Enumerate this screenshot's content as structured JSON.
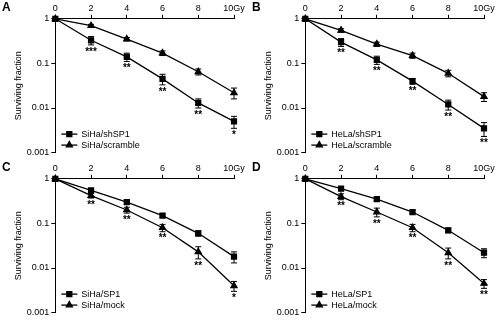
{
  "chart_data": [
    {
      "type": "line",
      "title": "A",
      "ylabel": "Surviving fraction",
      "x": [
        0,
        2,
        4,
        6,
        8,
        10
      ],
      "xlim": [
        0,
        10
      ],
      "xticks": [
        0,
        2,
        4,
        6,
        8,
        {
          "value": 10,
          "label": "10Gy"
        }
      ],
      "ylim": [
        0.001,
        1
      ],
      "yticks": [
        0.001,
        0.01,
        0.1,
        1
      ],
      "log": "y",
      "grid": false,
      "legend": "lower left",
      "series": [
        {
          "name": "SiHa/shSP1",
          "color": "#000000",
          "marker": "square",
          "values": [
            1,
            0.33,
            0.14,
            0.045,
            0.013,
            0.005
          ],
          "errors": [
            0,
            0.07,
            0.03,
            0.012,
            0.003,
            0.0015
          ]
        },
        {
          "name": "SiHa/scramble",
          "color": "#000000",
          "marker": "triangle",
          "values": [
            1,
            0.7,
            0.35,
            0.17,
            0.065,
            0.022
          ],
          "errors": [
            0,
            0.05,
            0.03,
            0.02,
            0.01,
            0.006
          ]
        }
      ],
      "annotations": [
        {
          "x": 2,
          "text": "***"
        },
        {
          "x": 4,
          "text": "**"
        },
        {
          "x": 6,
          "text": "**"
        },
        {
          "x": 8,
          "text": "**"
        },
        {
          "x": 10,
          "text": "*"
        }
      ]
    },
    {
      "type": "line",
      "title": "B",
      "ylabel": "Surviving fraction",
      "x": [
        0,
        2,
        4,
        6,
        8,
        10
      ],
      "xlim": [
        0,
        10
      ],
      "xticks": [
        0,
        2,
        4,
        6,
        8,
        {
          "value": 10,
          "label": "10Gy"
        }
      ],
      "ylim": [
        0.001,
        1
      ],
      "yticks": [
        0.001,
        0.01,
        0.1,
        1
      ],
      "log": "y",
      "grid": false,
      "legend": "lower left",
      "series": [
        {
          "name": "HeLa/shSP1",
          "color": "#000000",
          "marker": "square",
          "values": [
            1,
            0.3,
            0.12,
            0.04,
            0.012,
            0.0035
          ],
          "errors": [
            0,
            0.06,
            0.025,
            0.006,
            0.003,
            0.0012
          ]
        },
        {
          "name": "HeLa/scramble",
          "color": "#000000",
          "marker": "triangle",
          "values": [
            1,
            0.55,
            0.27,
            0.15,
            0.06,
            0.018
          ],
          "errors": [
            0,
            0.05,
            0.03,
            0.02,
            0.01,
            0.004
          ]
        }
      ],
      "annotations": [
        {
          "x": 2,
          "text": "**"
        },
        {
          "x": 4,
          "text": "**"
        },
        {
          "x": 6,
          "text": "**"
        },
        {
          "x": 8,
          "text": "**"
        },
        {
          "x": 10,
          "text": "**"
        }
      ]
    },
    {
      "type": "line",
      "title": "C",
      "ylabel": "Surviving fraction",
      "x": [
        0,
        2,
        4,
        6,
        8,
        10
      ],
      "xlim": [
        0,
        10
      ],
      "xticks": [
        0,
        2,
        4,
        6,
        8,
        {
          "value": 10,
          "label": "10Gy"
        }
      ],
      "ylim": [
        0.001,
        1
      ],
      "yticks": [
        0.001,
        0.01,
        0.1,
        1
      ],
      "log": "y",
      "grid": false,
      "legend": "lower left",
      "series": [
        {
          "name": "SiHa/SP1",
          "color": "#000000",
          "marker": "square",
          "values": [
            1,
            0.55,
            0.3,
            0.15,
            0.06,
            0.018
          ],
          "errors": [
            0,
            0.05,
            0.03,
            0.015,
            0.008,
            0.005
          ]
        },
        {
          "name": "SiHa/mock",
          "color": "#000000",
          "marker": "triangle",
          "values": [
            1,
            0.42,
            0.2,
            0.08,
            0.023,
            0.004
          ],
          "errors": [
            0,
            0.05,
            0.03,
            0.015,
            0.007,
            0.001
          ]
        }
      ],
      "annotations": [
        {
          "x": 2,
          "text": "**"
        },
        {
          "x": 4,
          "text": "**"
        },
        {
          "x": 6,
          "text": "**"
        },
        {
          "x": 8,
          "text": "**"
        },
        {
          "x": 10,
          "text": "*"
        }
      ]
    },
    {
      "type": "line",
      "title": "D",
      "ylabel": "Surviving fraction",
      "x": [
        0,
        2,
        4,
        6,
        8,
        10
      ],
      "xlim": [
        0,
        10
      ],
      "xticks": [
        0,
        2,
        4,
        6,
        8,
        {
          "value": 10,
          "label": "10Gy"
        }
      ],
      "ylim": [
        0.001,
        1
      ],
      "yticks": [
        0.001,
        0.01,
        0.1,
        1
      ],
      "log": "y",
      "grid": false,
      "legend": "lower left",
      "series": [
        {
          "name": "HeLa/SP1",
          "color": "#000000",
          "marker": "square",
          "values": [
            1,
            0.6,
            0.35,
            0.18,
            0.07,
            0.022
          ],
          "errors": [
            0,
            0.05,
            0.03,
            0.015,
            0.008,
            0.005
          ]
        },
        {
          "name": "HeLa/mock",
          "color": "#000000",
          "marker": "triangle",
          "values": [
            1,
            0.4,
            0.18,
            0.08,
            0.022,
            0.0045
          ],
          "errors": [
            0,
            0.06,
            0.04,
            0.015,
            0.006,
            0.001
          ]
        }
      ],
      "annotations": [
        {
          "x": 2,
          "text": "**"
        },
        {
          "x": 4,
          "text": "**"
        },
        {
          "x": 6,
          "text": "**"
        },
        {
          "x": 8,
          "text": "**"
        },
        {
          "x": 10,
          "text": "**"
        }
      ]
    }
  ]
}
